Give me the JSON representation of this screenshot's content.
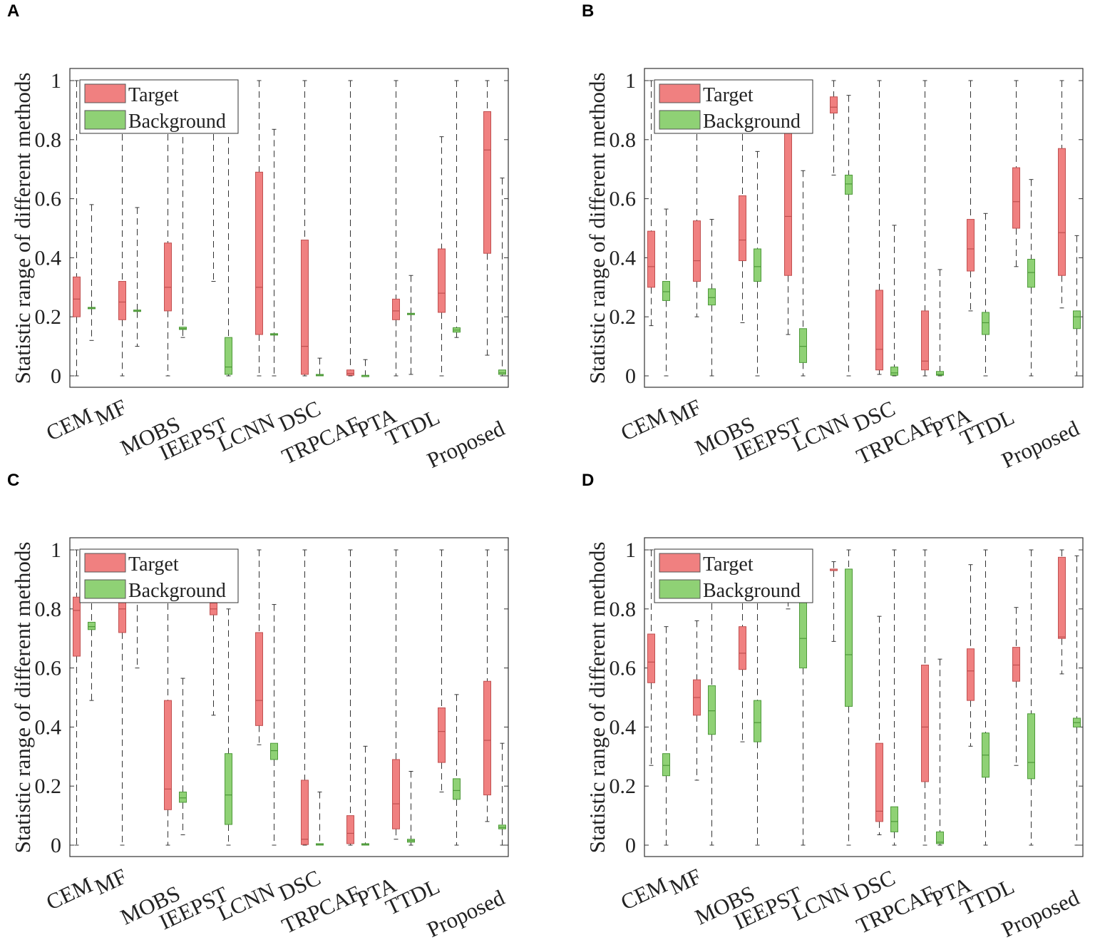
{
  "colors": {
    "target": "#f08080",
    "background": "#8fd175",
    "target_edge": "#c05050",
    "background_edge": "#4e9a3a"
  },
  "chart_data": [
    {
      "panel": "A",
      "type": "boxplot",
      "ylabel": "Statistic range of different methods",
      "ylim": [
        0,
        1
      ],
      "yticks": [
        "0",
        "0.2",
        "0.4",
        "0.6",
        "0.8",
        "1"
      ],
      "legend": [
        "Target",
        "Background"
      ],
      "categories": [
        "CEM",
        "MF",
        "MOBS",
        "IEEPST",
        "LCNN",
        "DSC",
        "TRPCAF",
        "PTA",
        "TTDL",
        "Proposed"
      ],
      "target": [
        [
          0,
          0.2,
          0.26,
          0.335,
          1
        ],
        [
          0,
          0.19,
          0.25,
          0.32,
          1
        ],
        [
          0,
          0.22,
          0.3,
          0.45,
          1
        ],
        [
          0.32,
          1,
          1,
          1,
          1
        ],
        [
          0,
          0.14,
          0.3,
          0.69,
          1
        ],
        [
          0,
          0.005,
          0.1,
          0.46,
          1
        ],
        [
          0,
          0.002,
          0.008,
          0.02,
          1
        ],
        [
          0,
          0.19,
          0.22,
          0.26,
          1
        ],
        [
          0,
          0.215,
          0.28,
          0.43,
          0.81
        ],
        [
          0.07,
          0.415,
          0.765,
          0.895,
          1
        ]
      ],
      "background": [
        [
          0.12,
          0.228,
          0.23,
          0.232,
          0.58
        ],
        [
          0.1,
          0.218,
          0.22,
          0.223,
          0.57
        ],
        [
          0.13,
          0.157,
          0.16,
          0.165,
          0.99
        ],
        [
          0,
          0.005,
          0.03,
          0.13,
          0.99
        ],
        [
          0,
          0.138,
          0.14,
          0.143,
          0.835
        ],
        [
          0,
          0,
          0.002,
          0.005,
          0.06
        ],
        [
          0,
          0,
          0.001,
          0.002,
          0.055
        ],
        [
          0.005,
          0.208,
          0.21,
          0.212,
          0.34
        ],
        [
          0.13,
          0.148,
          0.155,
          0.163,
          1
        ],
        [
          0,
          0.005,
          0.01,
          0.02,
          0.67
        ]
      ]
    },
    {
      "panel": "B",
      "type": "boxplot",
      "ylabel": "Statistic range of different methods",
      "ylim": [
        0,
        1
      ],
      "yticks": [
        "0",
        "0.2",
        "0.4",
        "0.6",
        "0.8",
        "1"
      ],
      "legend": [
        "Target",
        "Background"
      ],
      "categories": [
        "CEM",
        "MF",
        "MOBS",
        "IEEPST",
        "LCNN",
        "DSC",
        "TRPCAF",
        "PTA",
        "TTDL",
        "Proposed"
      ],
      "target": [
        [
          0.17,
          0.3,
          0.37,
          0.49,
          1
        ],
        [
          0.2,
          0.32,
          0.39,
          0.525,
          1
        ],
        [
          0.18,
          0.39,
          0.46,
          0.61,
          1
        ],
        [
          0.14,
          0.34,
          0.54,
          0.9,
          1
        ],
        [
          0.68,
          0.89,
          0.91,
          0.945,
          1
        ],
        [
          0.005,
          0.02,
          0.09,
          0.29,
          1
        ],
        [
          0,
          0.02,
          0.05,
          0.22,
          1
        ],
        [
          0.22,
          0.355,
          0.43,
          0.53,
          1
        ],
        [
          0.37,
          0.5,
          0.59,
          0.705,
          1
        ],
        [
          0.23,
          0.34,
          0.485,
          0.77,
          1
        ]
      ],
      "background": [
        [
          0,
          0.255,
          0.285,
          0.32,
          0.565
        ],
        [
          0,
          0.24,
          0.265,
          0.295,
          0.53
        ],
        [
          0,
          0.32,
          0.37,
          0.43,
          0.76
        ],
        [
          0,
          0.045,
          0.1,
          0.16,
          0.695
        ],
        [
          0,
          0.615,
          0.65,
          0.68,
          0.95
        ],
        [
          0,
          0.002,
          0.01,
          0.03,
          0.51
        ],
        [
          0,
          0.002,
          0.005,
          0.015,
          0.36
        ],
        [
          0,
          0.14,
          0.18,
          0.215,
          0.55
        ],
        [
          0,
          0.3,
          0.35,
          0.395,
          0.665
        ],
        [
          0,
          0.16,
          0.2,
          0.22,
          0.475
        ]
      ]
    },
    {
      "panel": "C",
      "type": "boxplot",
      "ylabel": "Statistic range of different methods",
      "ylim": [
        0,
        1
      ],
      "yticks": [
        "0",
        "0.2",
        "0.4",
        "0.6",
        "0.8",
        "1"
      ],
      "legend": [
        "Target",
        "Background"
      ],
      "categories": [
        "CEM",
        "MF",
        "MOBS",
        "IEEPST",
        "LCNN",
        "DSC",
        "TRPCAF",
        "PTA",
        "TTDL",
        "Proposed"
      ],
      "target": [
        [
          0,
          0.64,
          0.795,
          0.84,
          1
        ],
        [
          0,
          0.72,
          0.8,
          0.85,
          1
        ],
        [
          0,
          0.12,
          0.19,
          0.49,
          1
        ],
        [
          0.44,
          0.78,
          0.8,
          0.82,
          1
        ],
        [
          0.34,
          0.405,
          0.49,
          0.72,
          1
        ],
        [
          0,
          0.002,
          0.02,
          0.22,
          1
        ],
        [
          0,
          0.005,
          0.04,
          0.1,
          1
        ],
        [
          0.02,
          0.055,
          0.14,
          0.29,
          1
        ],
        [
          0.18,
          0.28,
          0.385,
          0.465,
          1
        ],
        [
          0.08,
          0.17,
          0.355,
          0.555,
          1
        ]
      ],
      "background": [
        [
          0.49,
          0.73,
          0.74,
          0.755,
          1
        ],
        [
          0.6,
          0.85,
          0.85,
          0.85,
          0.85
        ],
        [
          0.035,
          0.145,
          0.16,
          0.18,
          0.565
        ],
        [
          0,
          0.07,
          0.17,
          0.31,
          0.8
        ],
        [
          0,
          0.29,
          0.32,
          0.345,
          0.815
        ],
        [
          0,
          0,
          0.002,
          0.005,
          0.18
        ],
        [
          0,
          0,
          0.002,
          0.005,
          0.335
        ],
        [
          0,
          0.01,
          0.015,
          0.02,
          0.25
        ],
        [
          0,
          0.155,
          0.185,
          0.225,
          0.51
        ],
        [
          0,
          0.055,
          0.06,
          0.068,
          0.345
        ]
      ]
    },
    {
      "panel": "D",
      "type": "boxplot",
      "ylabel": "Statistic range of different methods",
      "ylim": [
        0,
        1
      ],
      "yticks": [
        "0",
        "0.2",
        "0.4",
        "0.6",
        "0.8",
        "1"
      ],
      "legend": [
        "Target",
        "Background"
      ],
      "categories": [
        "CEM",
        "MF",
        "MOBS",
        "IEEPST",
        "LCNN",
        "DSC",
        "TRPCAF",
        "PTA",
        "TTDL",
        "Proposed"
      ],
      "target": [
        [
          0.27,
          0.55,
          0.62,
          0.715,
          1
        ],
        [
          0.22,
          0.44,
          0.5,
          0.56,
          0.76
        ],
        [
          0.35,
          0.595,
          0.65,
          0.74,
          1
        ],
        [
          0.8,
          0.83,
          0.85,
          0.87,
          1
        ],
        [
          0.69,
          0.93,
          0.93,
          0.935,
          0.96
        ],
        [
          0.035,
          0.08,
          0.115,
          0.345,
          0.775
        ],
        [
          0,
          0.215,
          0.4,
          0.61,
          1
        ],
        [
          0.335,
          0.49,
          0.59,
          0.665,
          0.95
        ],
        [
          0.27,
          0.555,
          0.61,
          0.67,
          0.805
        ],
        [
          0.58,
          0.7,
          0.705,
          0.975,
          1
        ]
      ],
      "background": [
        [
          0,
          0.235,
          0.27,
          0.31,
          0.74
        ],
        [
          0,
          0.375,
          0.455,
          0.54,
          1
        ],
        [
          0,
          0.35,
          0.415,
          0.49,
          1
        ],
        [
          0,
          0.6,
          0.7,
          0.85,
          1
        ],
        [
          0,
          0.47,
          0.645,
          0.935,
          1
        ],
        [
          0,
          0.045,
          0.08,
          0.13,
          1
        ],
        [
          0,
          0.005,
          0.01,
          0.045,
          0.63
        ],
        [
          0,
          0.23,
          0.305,
          0.38,
          1
        ],
        [
          0,
          0.225,
          0.28,
          0.445,
          1
        ],
        [
          0,
          0.4,
          0.415,
          0.43,
          0.98
        ]
      ]
    }
  ]
}
